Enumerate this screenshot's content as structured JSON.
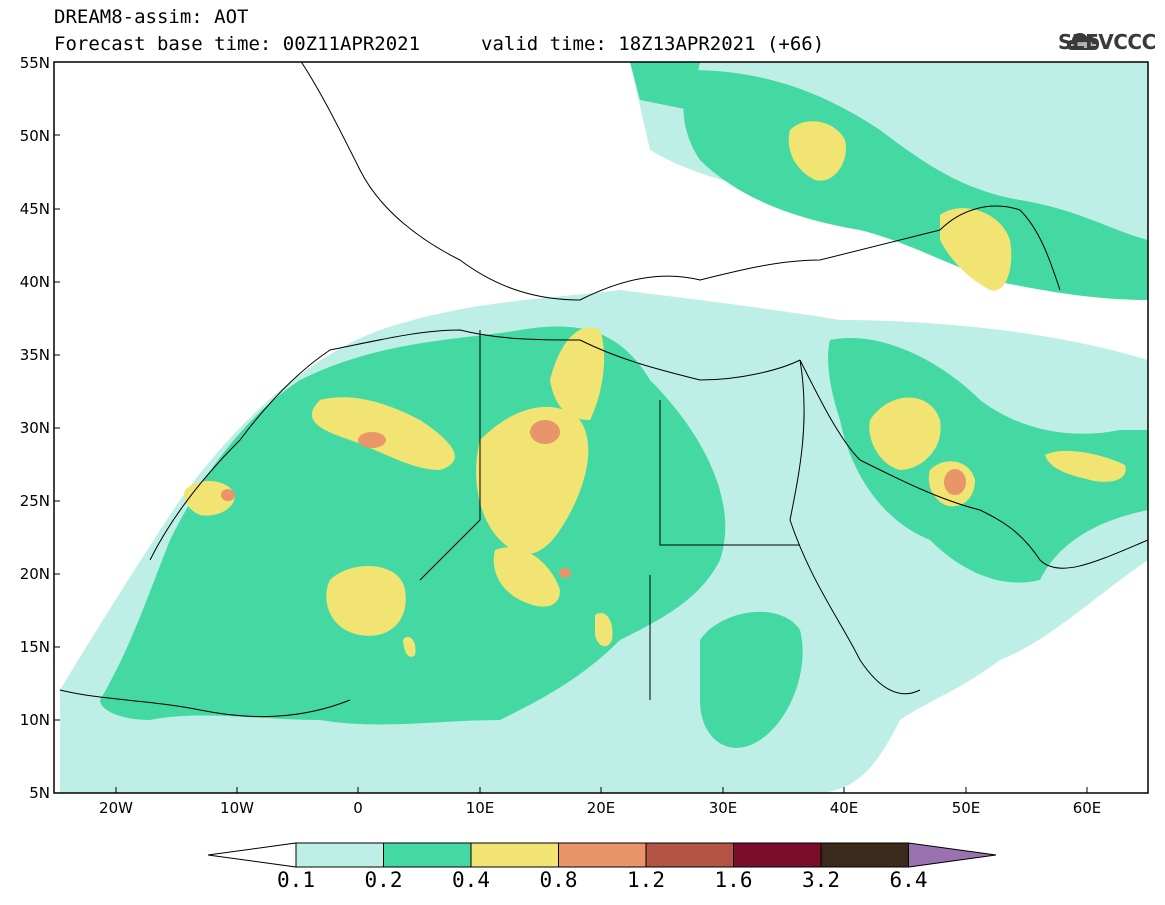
{
  "header": {
    "title_line1": "DREAM8-assim: AOT",
    "title_line2": "Forecast base time: 00Z11APR2021",
    "valid_time": "valid time: 18Z13APR2021 (+66)",
    "logo_text": "SEEVCCC"
  },
  "map": {
    "lat_labels": [
      "55N",
      "50N",
      "45N",
      "40N",
      "35N",
      "30N",
      "25N",
      "20N",
      "15N",
      "10N",
      "5N"
    ],
    "lon_labels": [
      "20W",
      "10W",
      "0",
      "10E",
      "20E",
      "30E",
      "40E",
      "50E",
      "60E"
    ],
    "colors": {
      "c01": "#bdefe6",
      "c02": "#44d9a3",
      "c04": "#f1e472",
      "c08": "#e9956a",
      "c12": "#b45444",
      "c16": "#7a0d2b",
      "c32": "#3a2a1c",
      "c64": "#9b72b0",
      "coast": "#000000"
    }
  },
  "colorbar": {
    "labels": [
      "0.1",
      "0.2",
      "0.4",
      "0.8",
      "1.2",
      "1.6",
      "3.2",
      "6.4"
    ]
  }
}
